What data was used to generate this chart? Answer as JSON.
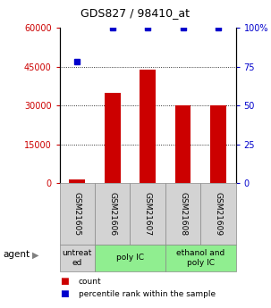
{
  "title": "GDS827 / 98410_at",
  "categories": [
    "GSM21605",
    "GSM21606",
    "GSM21607",
    "GSM21608",
    "GSM21609"
  ],
  "bar_values": [
    1500,
    35000,
    44000,
    30000,
    30000
  ],
  "percentile_values": [
    78,
    100,
    100,
    100,
    100
  ],
  "bar_color": "#cc0000",
  "dot_color": "#0000cc",
  "ylim_left": [
    0,
    60000
  ],
  "ylim_right": [
    0,
    100
  ],
  "yticks_left": [
    0,
    15000,
    30000,
    45000,
    60000
  ],
  "yticks_right": [
    0,
    25,
    50,
    75,
    100
  ],
  "ytick_labels_left": [
    "0",
    "15000",
    "30000",
    "45000",
    "60000"
  ],
  "ytick_labels_right": [
    "0",
    "25",
    "50",
    "75",
    "100%"
  ],
  "grid_lines": [
    15000,
    30000,
    45000
  ],
  "agent_groups": [
    {
      "label": "untreat\ned",
      "start": 0,
      "end": 1,
      "color": "#d3d3d3"
    },
    {
      "label": "poly IC",
      "start": 1,
      "end": 3,
      "color": "#90ee90"
    },
    {
      "label": "ethanol and\npoly IC",
      "start": 3,
      "end": 5,
      "color": "#90ee90"
    }
  ],
  "legend_count_label": "count",
  "legend_pct_label": "percentile rank within the sample",
  "agent_label": "agent",
  "gsm_cell_color": "#d3d3d3",
  "bar_width": 0.45
}
